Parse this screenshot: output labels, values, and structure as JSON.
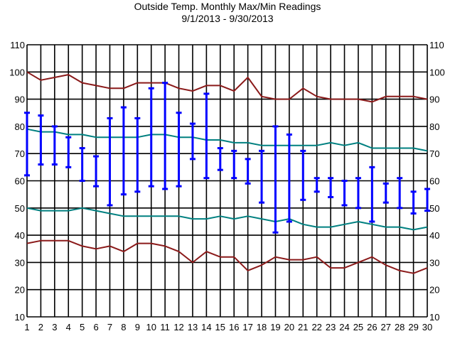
{
  "chart_data": {
    "type": "line",
    "title": "Outside Temp. Monthly Max/Min Readings",
    "subtitle": "9/1/2013 - 9/30/2013",
    "xlabel": "",
    "ylabel": "",
    "x": [
      1,
      2,
      3,
      4,
      5,
      6,
      7,
      8,
      9,
      10,
      11,
      12,
      13,
      14,
      15,
      16,
      17,
      18,
      19,
      20,
      21,
      22,
      23,
      24,
      25,
      26,
      27,
      28,
      29,
      30
    ],
    "x_ticks": [
      "1",
      "2",
      "3",
      "4",
      "5",
      "6",
      "7",
      "8",
      "9",
      "10",
      "11",
      "12",
      "13",
      "14",
      "15",
      "16",
      "17",
      "18",
      "19",
      "20",
      "21",
      "22",
      "23",
      "24",
      "25",
      "26",
      "27",
      "28",
      "29",
      "30"
    ],
    "ylim": [
      10,
      110
    ],
    "y_ticks": [
      "10",
      "20",
      "30",
      "40",
      "50",
      "60",
      "70",
      "80",
      "90",
      "100",
      "110"
    ],
    "y_axis_both_sides": true,
    "grid": true,
    "colors": {
      "record": "#8b1a1a",
      "average": "#008080",
      "daily_range": "#0000ff",
      "grid": "#000000",
      "background": "#ffffff"
    },
    "series": [
      {
        "role": "record_high",
        "type": "line",
        "color": "#8b1a1a",
        "values": [
          100,
          97,
          98,
          99,
          96,
          95,
          94,
          94,
          96,
          96,
          96,
          94,
          93,
          95,
          95,
          93,
          98,
          91,
          90,
          90,
          94,
          91,
          90,
          90,
          90,
          89,
          91,
          91,
          91,
          90
        ]
      },
      {
        "role": "average_high",
        "type": "line",
        "color": "#008080",
        "values": [
          79,
          78,
          78,
          77,
          77,
          76,
          76,
          76,
          76,
          77,
          77,
          76,
          76,
          75,
          75,
          74,
          74,
          73,
          73,
          73,
          73,
          73,
          74,
          73,
          74,
          72,
          72,
          72,
          72,
          71
        ]
      },
      {
        "role": "average_low",
        "type": "line",
        "color": "#008080",
        "values": [
          50,
          49,
          49,
          49,
          50,
          49,
          48,
          47,
          47,
          47,
          47,
          47,
          46,
          46,
          47,
          46,
          47,
          46,
          45,
          46,
          44,
          43,
          43,
          44,
          45,
          44,
          43,
          43,
          42,
          43
        ]
      },
      {
        "role": "record_low",
        "type": "line",
        "color": "#8b1a1a",
        "values": [
          37,
          38,
          38,
          38,
          36,
          35,
          36,
          34,
          37,
          37,
          36,
          34,
          30,
          34,
          32,
          32,
          27,
          29,
          32,
          31,
          31,
          32,
          28,
          28,
          30,
          32,
          29,
          27,
          26,
          28
        ]
      },
      {
        "role": "daily_range",
        "type": "range",
        "color": "#0000ff",
        "high": [
          85,
          84,
          80,
          76,
          72,
          69,
          83,
          87,
          83,
          94,
          96,
          85,
          81,
          92,
          72,
          71,
          68,
          71,
          80,
          77,
          71,
          61,
          61,
          60,
          61,
          65,
          59,
          61,
          56,
          57
        ],
        "low": [
          62,
          66,
          66,
          65,
          60,
          58,
          51,
          55,
          56,
          58,
          57,
          58,
          68,
          61,
          64,
          61,
          59,
          52,
          41,
          45,
          53,
          56,
          54,
          51,
          50,
          45,
          52,
          50,
          48,
          49
        ]
      }
    ]
  }
}
